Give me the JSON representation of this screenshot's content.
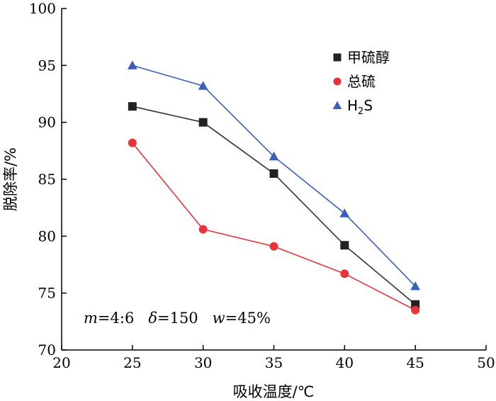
{
  "chart_data": {
    "type": "line",
    "xlabel": "吸收温度/℃",
    "ylabel": "脱除率/%",
    "xlim": [
      20,
      50
    ],
    "ylim": [
      70,
      100
    ],
    "x_ticks": [
      20,
      25,
      30,
      35,
      40,
      45,
      50
    ],
    "y_ticks": [
      70,
      75,
      80,
      85,
      90,
      95,
      100
    ],
    "x": [
      25,
      30,
      35,
      40,
      45
    ],
    "grid": false,
    "legend_position": "top-right",
    "series": [
      {
        "name": "甲硫醇",
        "marker": "square",
        "color": "#222222",
        "line_color": "#333333",
        "values": [
          91.4,
          90.0,
          85.5,
          79.2,
          74.0
        ]
      },
      {
        "name": "总硫",
        "marker": "circle",
        "color": "#e8333a",
        "line_color": "#e8333a",
        "values": [
          88.2,
          80.6,
          79.1,
          76.7,
          73.5
        ]
      },
      {
        "name": "H2S",
        "name_main": "H",
        "name_sub": "2",
        "name_tail": "S",
        "marker": "triangle",
        "color": "#3a5fb8",
        "line_color": "#3a5fb8",
        "values": [
          95.0,
          93.2,
          87.0,
          82.0,
          75.6
        ]
      }
    ],
    "annotation": {
      "m_var": "m",
      "m_val": "=4:6",
      "d_var": "δ",
      "d_val": "=150",
      "w_var": "w",
      "w_val": "=45%"
    }
  }
}
